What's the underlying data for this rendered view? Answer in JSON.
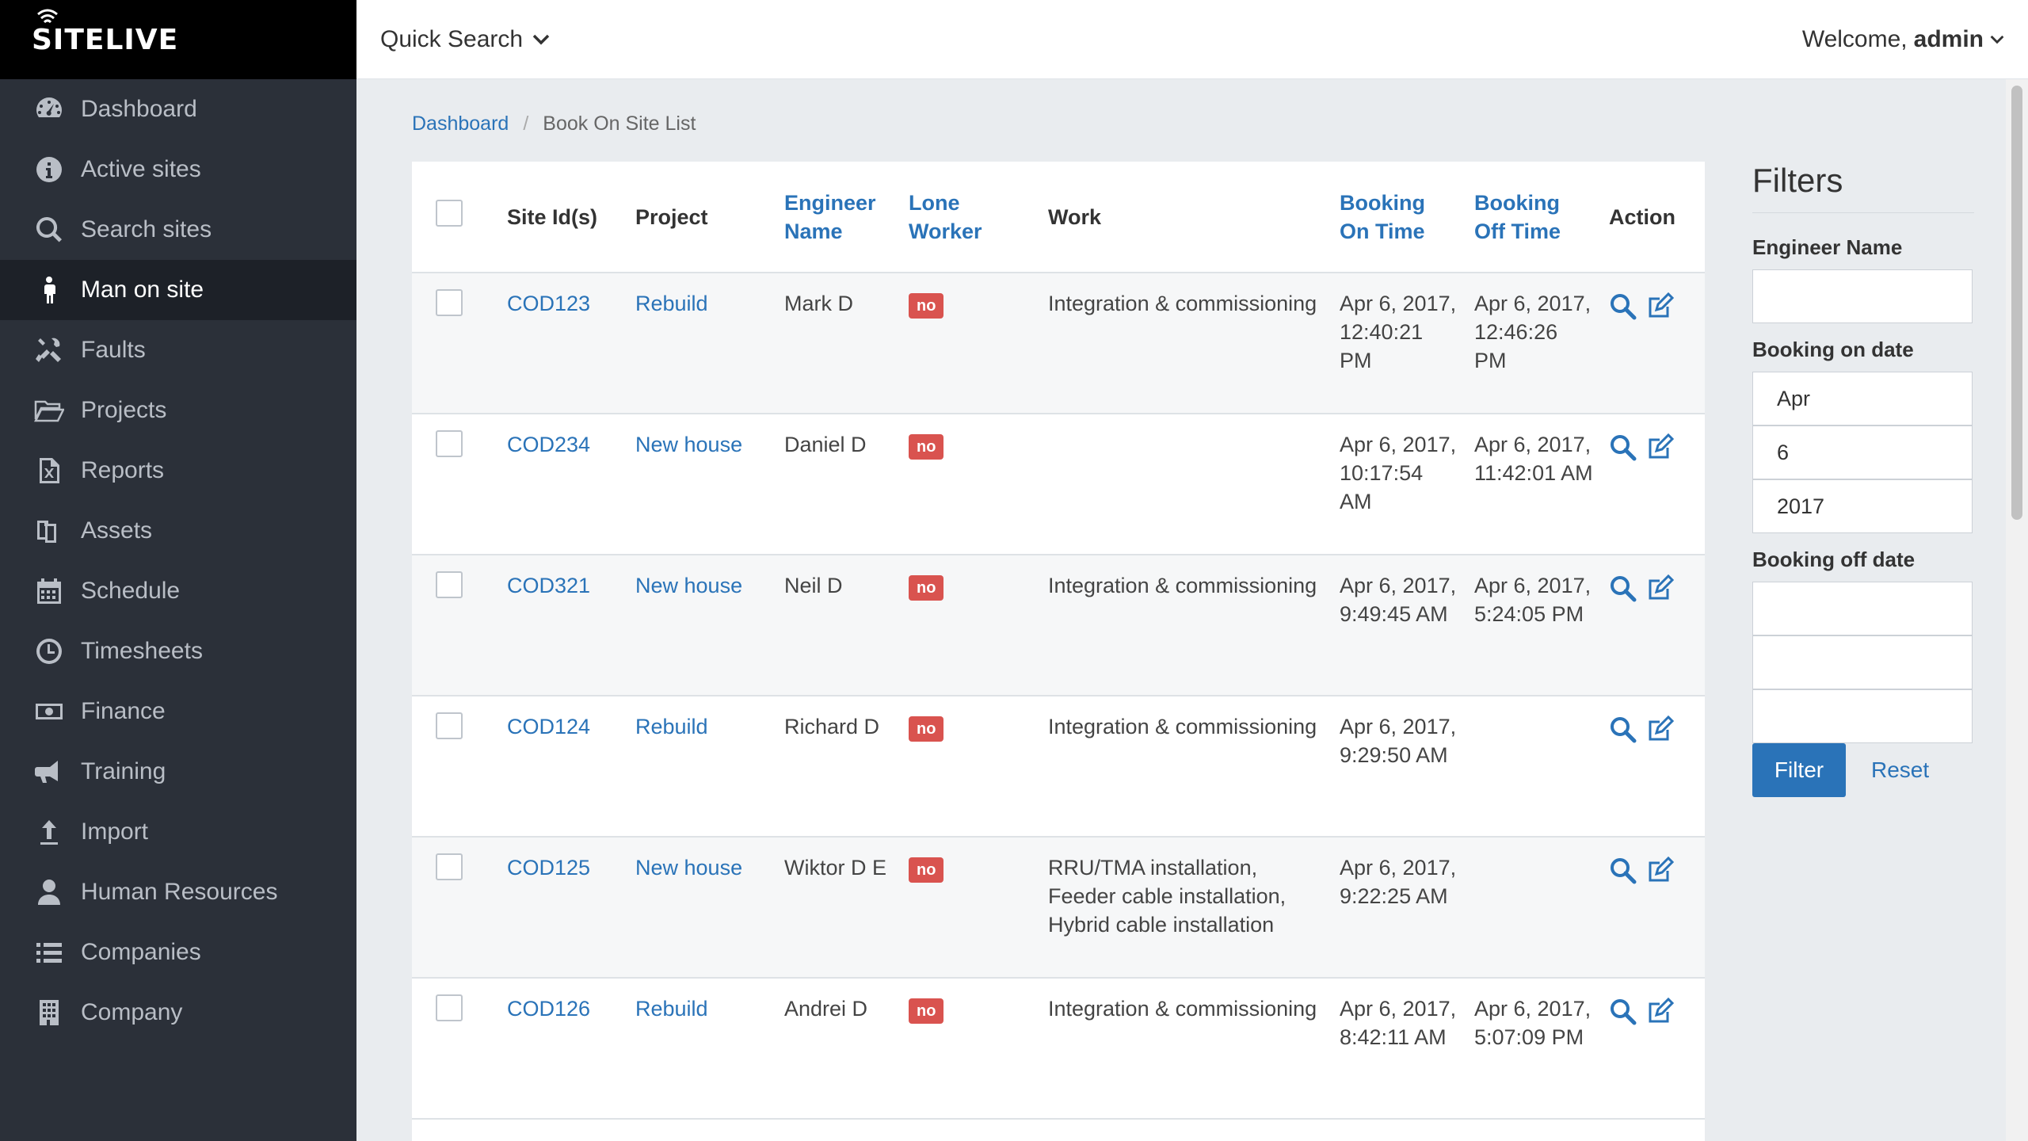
{
  "app": {
    "logo_text": "SITELIVE"
  },
  "sidebar": {
    "items": [
      {
        "label": "Dashboard",
        "icon": "dashboard-icon"
      },
      {
        "label": "Active sites",
        "icon": "info-icon"
      },
      {
        "label": "Search sites",
        "icon": "search-icon"
      },
      {
        "label": "Man on site",
        "icon": "male-icon",
        "active": true
      },
      {
        "label": "Faults",
        "icon": "faults-icon"
      },
      {
        "label": "Projects",
        "icon": "folder-open-icon"
      },
      {
        "label": "Reports",
        "icon": "excel-file-icon"
      },
      {
        "label": "Assets",
        "icon": "assets-icon"
      },
      {
        "label": "Schedule",
        "icon": "calendar-icon"
      },
      {
        "label": "Timesheets",
        "icon": "clock-icon"
      },
      {
        "label": "Finance",
        "icon": "money-icon"
      },
      {
        "label": "Training",
        "icon": "bullhorn-icon"
      },
      {
        "label": "Import",
        "icon": "upload-arrow-icon"
      },
      {
        "label": "Human Resources",
        "icon": "user-icon"
      },
      {
        "label": "Companies",
        "icon": "list-icon"
      },
      {
        "label": "Company",
        "icon": "building-icon"
      }
    ]
  },
  "topbar": {
    "quick_search": "Quick Search",
    "welcome": "Welcome,",
    "user": "admin"
  },
  "breadcrumb": {
    "home": "Dashboard",
    "separator": "/",
    "current": "Book On Site List"
  },
  "table": {
    "headers": {
      "site_ids": "Site Id(s)",
      "project": "Project",
      "engineer": "Engineer Name",
      "lone_worker": "Lone Worker",
      "work": "Work",
      "booking_on": "Booking On Time",
      "booking_off": "Booking Off Time",
      "action": "Action"
    },
    "rows": [
      {
        "site": "COD123",
        "project": "Rebuild",
        "engineer": "Mark D",
        "lone": "no",
        "work": "Integration & commissioning",
        "on": "Apr 6, 2017, 12:40:21 PM",
        "off": "Apr 6, 2017, 12:46:26 PM"
      },
      {
        "site": "COD234",
        "project": "New house",
        "engineer": "Daniel D",
        "lone": "no",
        "work": "",
        "on": "Apr 6, 2017, 10:17:54 AM",
        "off": "Apr 6, 2017, 11:42:01 AM"
      },
      {
        "site": "COD321",
        "project": "New house",
        "engineer": "Neil D",
        "lone": "no",
        "work": "Integration & commissioning",
        "on": "Apr 6, 2017, 9:49:45 AM",
        "off": "Apr 6, 2017, 5:24:05 PM"
      },
      {
        "site": "COD124",
        "project": "Rebuild",
        "engineer": "Richard D",
        "lone": "no",
        "work": "Integration & commissioning",
        "on": "Apr 6, 2017, 9:29:50 AM",
        "off": ""
      },
      {
        "site": "COD125",
        "project": "New house",
        "engineer": "Wiktor D E",
        "lone": "no",
        "work": "RRU/TMA installation, Feeder cable installation, Hybrid cable installation",
        "on": "Apr 6, 2017, 9:22:25 AM",
        "off": ""
      },
      {
        "site": "COD126",
        "project": "Rebuild",
        "engineer": "Andrei D",
        "lone": "no",
        "work": "Integration & commissioning",
        "on": "Apr 6, 2017, 8:42:11 AM",
        "off": "Apr 6, 2017, 5:07:09 PM"
      }
    ]
  },
  "filters": {
    "title": "Filters",
    "engineer_label": "Engineer Name",
    "engineer_value": "",
    "on_label": "Booking on date",
    "on_month": "Apr",
    "on_day": "6",
    "on_year": "2017",
    "off_label": "Booking off date",
    "off_month": "",
    "off_day": "",
    "off_year": "",
    "filter_button": "Filter",
    "reset_link": "Reset"
  },
  "colors": {
    "sidebar_bg": "#2b3039",
    "accent": "#2a73b8",
    "badge_red": "#d9534f"
  }
}
